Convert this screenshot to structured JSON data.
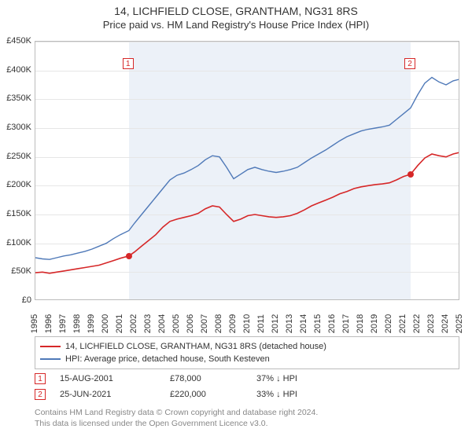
{
  "title": "14, LICHFIELD CLOSE, GRANTHAM, NG31 8RS",
  "subtitle": "Price paid vs. HM Land Registry's House Price Index (HPI)",
  "chart": {
    "type": "line",
    "background_color": "#ffffff",
    "grid_color": "#e6e6e6",
    "axis_color": "#bcbcbc",
    "label_fontsize": 11,
    "ylim": [
      0,
      450000
    ],
    "ytick_step": 50000,
    "yticks": [
      "£0",
      "£50K",
      "£100K",
      "£150K",
      "£200K",
      "£250K",
      "£300K",
      "£350K",
      "£400K",
      "£450K"
    ],
    "x_years": [
      1995,
      1996,
      1997,
      1998,
      1999,
      2000,
      2001,
      2002,
      2003,
      2004,
      2005,
      2006,
      2007,
      2008,
      2009,
      2010,
      2011,
      2012,
      2013,
      2014,
      2015,
      2016,
      2017,
      2018,
      2019,
      2020,
      2021,
      2022,
      2023,
      2024,
      2025
    ],
    "shaded_band": {
      "start_year": 2001.6,
      "end_year": 2021.5,
      "fill": "#c8d7eb",
      "opacity": 0.35
    },
    "series": [
      {
        "id": "property",
        "label": "14, LICHFIELD CLOSE, GRANTHAM, NG31 8RS (detached house)",
        "color": "#d62728",
        "line_width": 1.6,
        "points": [
          {
            "x": 1995.0,
            "y": 49000
          },
          {
            "x": 1995.5,
            "y": 50000
          },
          {
            "x": 1996.0,
            "y": 48000
          },
          {
            "x": 1996.5,
            "y": 50000
          },
          {
            "x": 1997.0,
            "y": 52000
          },
          {
            "x": 1997.5,
            "y": 54000
          },
          {
            "x": 1998.0,
            "y": 56000
          },
          {
            "x": 1998.5,
            "y": 58000
          },
          {
            "x": 1999.0,
            "y": 60000
          },
          {
            "x": 1999.5,
            "y": 62000
          },
          {
            "x": 2000.0,
            "y": 66000
          },
          {
            "x": 2000.5,
            "y": 70000
          },
          {
            "x": 2001.0,
            "y": 74000
          },
          {
            "x": 2001.6,
            "y": 78000
          },
          {
            "x": 2002.0,
            "y": 85000
          },
          {
            "x": 2002.5,
            "y": 95000
          },
          {
            "x": 2003.0,
            "y": 105000
          },
          {
            "x": 2003.5,
            "y": 115000
          },
          {
            "x": 2004.0,
            "y": 128000
          },
          {
            "x": 2004.5,
            "y": 138000
          },
          {
            "x": 2005.0,
            "y": 142000
          },
          {
            "x": 2005.5,
            "y": 145000
          },
          {
            "x": 2006.0,
            "y": 148000
          },
          {
            "x": 2006.5,
            "y": 152000
          },
          {
            "x": 2007.0,
            "y": 160000
          },
          {
            "x": 2007.5,
            "y": 165000
          },
          {
            "x": 2008.0,
            "y": 163000
          },
          {
            "x": 2008.5,
            "y": 150000
          },
          {
            "x": 2009.0,
            "y": 138000
          },
          {
            "x": 2009.5,
            "y": 142000
          },
          {
            "x": 2010.0,
            "y": 148000
          },
          {
            "x": 2010.5,
            "y": 150000
          },
          {
            "x": 2011.0,
            "y": 148000
          },
          {
            "x": 2011.5,
            "y": 146000
          },
          {
            "x": 2012.0,
            "y": 145000
          },
          {
            "x": 2012.5,
            "y": 146000
          },
          {
            "x": 2013.0,
            "y": 148000
          },
          {
            "x": 2013.5,
            "y": 152000
          },
          {
            "x": 2014.0,
            "y": 158000
          },
          {
            "x": 2014.5,
            "y": 165000
          },
          {
            "x": 2015.0,
            "y": 170000
          },
          {
            "x": 2015.5,
            "y": 175000
          },
          {
            "x": 2016.0,
            "y": 180000
          },
          {
            "x": 2016.5,
            "y": 186000
          },
          {
            "x": 2017.0,
            "y": 190000
          },
          {
            "x": 2017.5,
            "y": 195000
          },
          {
            "x": 2018.0,
            "y": 198000
          },
          {
            "x": 2018.5,
            "y": 200000
          },
          {
            "x": 2019.0,
            "y": 202000
          },
          {
            "x": 2019.5,
            "y": 203000
          },
          {
            "x": 2020.0,
            "y": 205000
          },
          {
            "x": 2020.5,
            "y": 210000
          },
          {
            "x": 2021.0,
            "y": 216000
          },
          {
            "x": 2021.5,
            "y": 220000
          },
          {
            "x": 2022.0,
            "y": 235000
          },
          {
            "x": 2022.5,
            "y": 248000
          },
          {
            "x": 2023.0,
            "y": 255000
          },
          {
            "x": 2023.5,
            "y": 252000
          },
          {
            "x": 2024.0,
            "y": 250000
          },
          {
            "x": 2024.5,
            "y": 255000
          },
          {
            "x": 2025.0,
            "y": 258000
          }
        ]
      },
      {
        "id": "hpi",
        "label": "HPI: Average price, detached house, South Kesteven",
        "color": "#4f79b8",
        "line_width": 1.4,
        "points": [
          {
            "x": 1995.0,
            "y": 75000
          },
          {
            "x": 1995.5,
            "y": 73000
          },
          {
            "x": 1996.0,
            "y": 72000
          },
          {
            "x": 1996.5,
            "y": 75000
          },
          {
            "x": 1997.0,
            "y": 78000
          },
          {
            "x": 1997.5,
            "y": 80000
          },
          {
            "x": 1998.0,
            "y": 83000
          },
          {
            "x": 1998.5,
            "y": 86000
          },
          {
            "x": 1999.0,
            "y": 90000
          },
          {
            "x": 1999.5,
            "y": 95000
          },
          {
            "x": 2000.0,
            "y": 100000
          },
          {
            "x": 2000.5,
            "y": 108000
          },
          {
            "x": 2001.0,
            "y": 115000
          },
          {
            "x": 2001.6,
            "y": 122000
          },
          {
            "x": 2002.0,
            "y": 135000
          },
          {
            "x": 2002.5,
            "y": 150000
          },
          {
            "x": 2003.0,
            "y": 165000
          },
          {
            "x": 2003.5,
            "y": 180000
          },
          {
            "x": 2004.0,
            "y": 195000
          },
          {
            "x": 2004.5,
            "y": 210000
          },
          {
            "x": 2005.0,
            "y": 218000
          },
          {
            "x": 2005.5,
            "y": 222000
          },
          {
            "x": 2006.0,
            "y": 228000
          },
          {
            "x": 2006.5,
            "y": 235000
          },
          {
            "x": 2007.0,
            "y": 245000
          },
          {
            "x": 2007.5,
            "y": 252000
          },
          {
            "x": 2008.0,
            "y": 250000
          },
          {
            "x": 2008.5,
            "y": 232000
          },
          {
            "x": 2009.0,
            "y": 212000
          },
          {
            "x": 2009.5,
            "y": 220000
          },
          {
            "x": 2010.0,
            "y": 228000
          },
          {
            "x": 2010.5,
            "y": 232000
          },
          {
            "x": 2011.0,
            "y": 228000
          },
          {
            "x": 2011.5,
            "y": 225000
          },
          {
            "x": 2012.0,
            "y": 223000
          },
          {
            "x": 2012.5,
            "y": 225000
          },
          {
            "x": 2013.0,
            "y": 228000
          },
          {
            "x": 2013.5,
            "y": 232000
          },
          {
            "x": 2014.0,
            "y": 240000
          },
          {
            "x": 2014.5,
            "y": 248000
          },
          {
            "x": 2015.0,
            "y": 255000
          },
          {
            "x": 2015.5,
            "y": 262000
          },
          {
            "x": 2016.0,
            "y": 270000
          },
          {
            "x": 2016.5,
            "y": 278000
          },
          {
            "x": 2017.0,
            "y": 285000
          },
          {
            "x": 2017.5,
            "y": 290000
          },
          {
            "x": 2018.0,
            "y": 295000
          },
          {
            "x": 2018.5,
            "y": 298000
          },
          {
            "x": 2019.0,
            "y": 300000
          },
          {
            "x": 2019.5,
            "y": 302000
          },
          {
            "x": 2020.0,
            "y": 305000
          },
          {
            "x": 2020.5,
            "y": 315000
          },
          {
            "x": 2021.0,
            "y": 325000
          },
          {
            "x": 2021.5,
            "y": 335000
          },
          {
            "x": 2022.0,
            "y": 358000
          },
          {
            "x": 2022.5,
            "y": 378000
          },
          {
            "x": 2023.0,
            "y": 388000
          },
          {
            "x": 2023.5,
            "y": 380000
          },
          {
            "x": 2024.0,
            "y": 375000
          },
          {
            "x": 2024.5,
            "y": 382000
          },
          {
            "x": 2025.0,
            "y": 385000
          }
        ]
      }
    ],
    "sales": [
      {
        "n": "1",
        "year": 2001.6,
        "price_y": 78000,
        "date": "15-AUG-2001",
        "price": "£78,000",
        "delta": "37% ↓ HPI",
        "marker_color": "#d62728",
        "box_top_y": 420000
      },
      {
        "n": "2",
        "year": 2021.5,
        "price_y": 220000,
        "date": "25-JUN-2021",
        "price": "£220,000",
        "delta": "33% ↓ HPI",
        "marker_color": "#d62728",
        "box_top_y": 420000
      }
    ]
  },
  "footer": {
    "line1": "Contains HM Land Registry data © Crown copyright and database right 2024.",
    "line2": "This data is licensed under the Open Government Licence v3.0."
  }
}
